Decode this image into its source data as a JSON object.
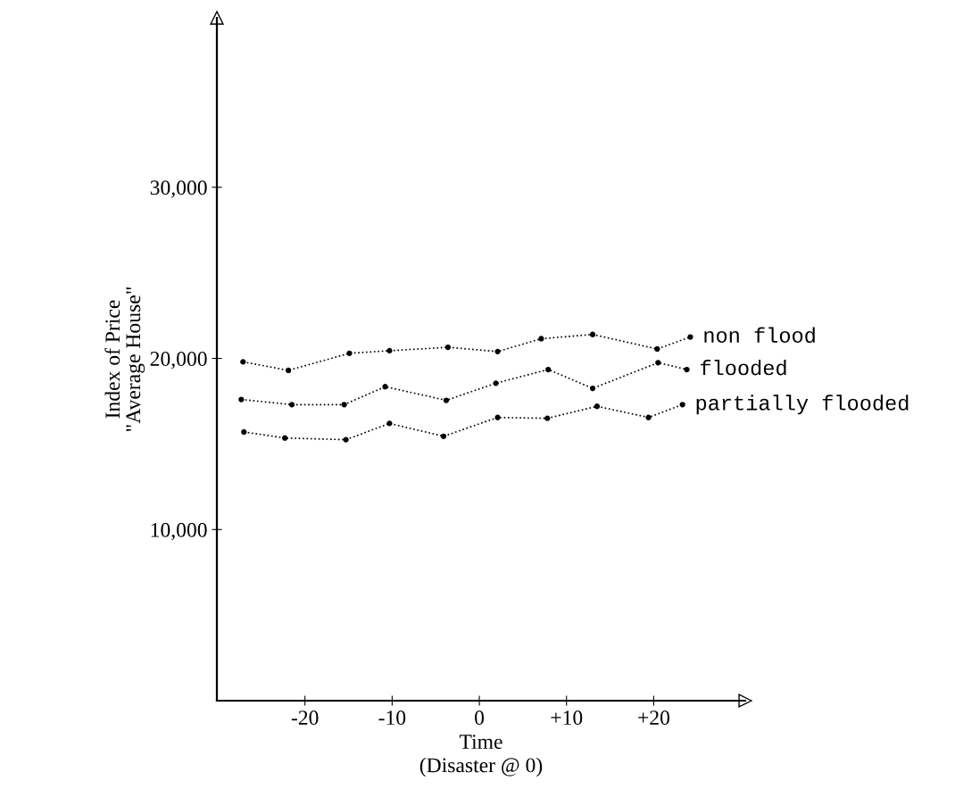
{
  "chart_data": {
    "type": "line",
    "xlabel": "Time\n(Disaster @ 0)",
    "ylabel": "Index of Price\n\"Average House\"",
    "xlim": [
      -30.1,
      30.5
    ],
    "ylim": [
      0,
      39900
    ],
    "xticks": [
      -20,
      -10,
      0,
      {
        "value": 10,
        "label": "+10"
      },
      {
        "value": 20,
        "label": "+20"
      }
    ],
    "yticks": [
      {
        "value": 10000,
        "label": "10,000"
      },
      {
        "value": 20000,
        "label": "20,000"
      },
      {
        "value": 30000,
        "label": "30,000"
      }
    ],
    "grid": false,
    "marker": "circle",
    "line_style": "dotted",
    "series": [
      {
        "name": "non flood",
        "color": "#000000",
        "x": [
          -27.1,
          -21.9,
          -14.9,
          -10.3,
          -3.6,
          2.1,
          7.1,
          13.0,
          20.4,
          24.2
        ],
        "values": [
          19800,
          19300,
          20300,
          20450,
          20650,
          20400,
          21150,
          21400,
          20550,
          21250
        ]
      },
      {
        "name": "flooded",
        "color": "#000000",
        "x": [
          -27.3,
          -21.5,
          -15.5,
          -10.8,
          -3.8,
          1.9,
          7.9,
          13.0,
          20.5,
          23.8
        ],
        "values": [
          17600,
          17300,
          17300,
          18350,
          17550,
          18550,
          19350,
          18250,
          19750,
          19350
        ]
      },
      {
        "name": "partially flooded",
        "color": "#000000",
        "x": [
          -27.0,
          -22.3,
          -15.3,
          -10.3,
          -4.1,
          2.1,
          7.8,
          13.5,
          19.4,
          23.3
        ],
        "values": [
          15700,
          15350,
          15250,
          16200,
          15450,
          16550,
          16500,
          17200,
          16550,
          17300
        ]
      }
    ]
  }
}
